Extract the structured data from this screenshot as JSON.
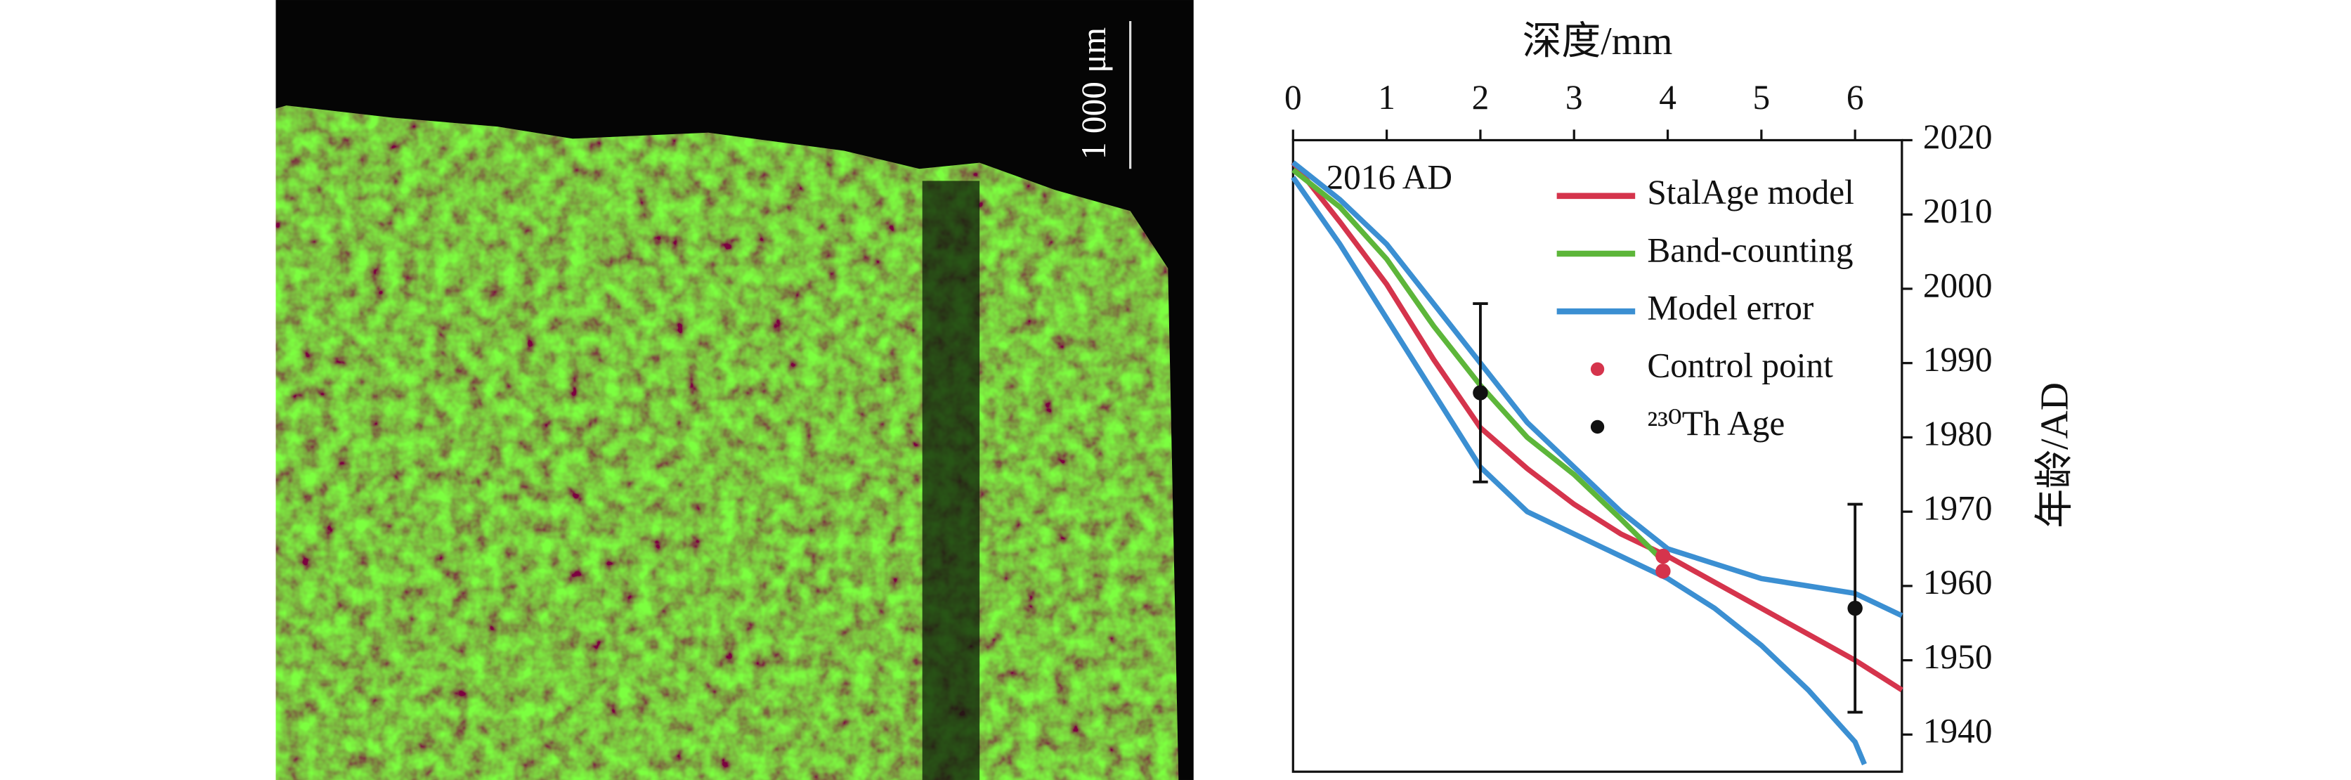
{
  "scale_bar": "1 000 μm",
  "chart_data": {
    "type": "line",
    "x_label": "深度/mm",
    "y_label": "年龄/AD",
    "annotation": "2016 AD",
    "xlim": [
      0,
      6.5
    ],
    "xticks": [
      0,
      1,
      2,
      3,
      4,
      5,
      6
    ],
    "ylim": [
      1935,
      2020
    ],
    "yticks": [
      1940,
      1950,
      1960,
      1970,
      1980,
      1990,
      2000,
      2010,
      2020
    ],
    "series": [
      {
        "name": "StalAge model",
        "color": "#d5344c",
        "x": [
          0,
          0.5,
          1,
          1.5,
          2,
          2.5,
          3,
          3.5,
          4,
          4.5,
          5,
          5.5,
          6,
          6.5
        ],
        "values": [
          2017,
          2009,
          2000.6,
          1990.5,
          1981.3,
          1975.8,
          1971,
          1967,
          1964,
          1960.5,
          1957,
          1953.5,
          1950,
          1946
        ]
      },
      {
        "name": "Band-counting",
        "color": "#5db63a",
        "x": [
          0,
          0.5,
          1,
          1.5,
          2,
          2.5,
          3,
          3.5,
          3.9
        ],
        "values": [
          2016,
          2011,
          2004,
          1995,
          1987,
          1980,
          1975,
          1969,
          1964
        ]
      },
      {
        "name": "Model error",
        "color": "#3b8fd2",
        "x": [
          0,
          0.5,
          1,
          1.5,
          2,
          2.5,
          3,
          3.5,
          4,
          4.5,
          5,
          5.5,
          6,
          6.5
        ],
        "values": [
          2017,
          2012,
          2006,
          1998,
          1990,
          1982,
          1976,
          1970,
          1965,
          1963,
          1961,
          1960,
          1959,
          1956
        ],
        "x_lower": [
          0,
          0.5,
          1,
          1.5,
          2,
          2.5,
          3,
          3.5,
          4,
          4.5,
          5,
          5.5,
          6,
          6.1
        ],
        "lower": [
          2015,
          2006,
          1996,
          1986,
          1976,
          1970,
          1967,
          1964,
          1961,
          1957,
          1952,
          1946,
          1939,
          1936
        ]
      }
    ],
    "points": [
      {
        "name": "Control point",
        "color": "#d5344c",
        "x": [
          3.95,
          3.95
        ],
        "values": [
          1964,
          1962
        ]
      },
      {
        "name": "²³⁰Th Age",
        "color": "#111111",
        "x": [
          2,
          6
        ],
        "values": [
          1986,
          1957
        ],
        "errors": [
          12,
          14
        ]
      }
    ]
  }
}
